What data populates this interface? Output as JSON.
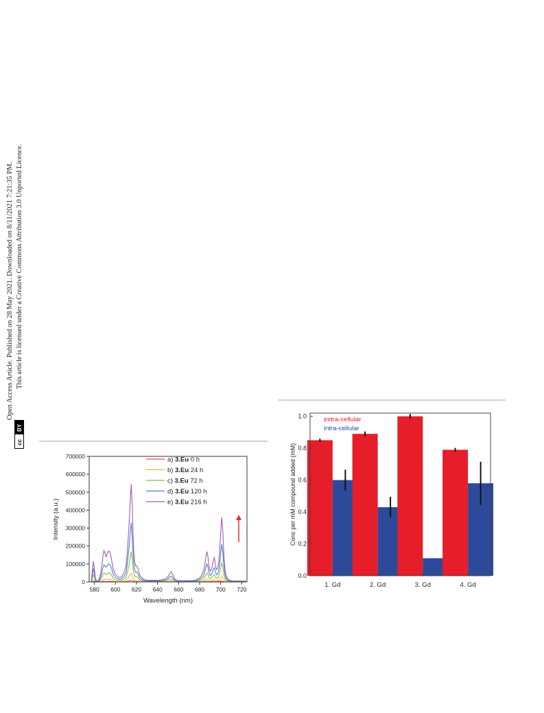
{
  "side_note": {
    "line1": "Open Access Article. Published on 28 May 2021. Downloaded on 8/11/2021 7:21:35 PM.",
    "line2": "This article is licensed under a Creative Commons Attribution 3.0 Unported Licence.",
    "cc_badge": "cc",
    "by_badge": "BY"
  },
  "chart_data": [
    {
      "type": "line",
      "xlabel": "Wavelength (nm)",
      "ylabel": "Intensity (a.u.)",
      "xlim": [
        575,
        725
      ],
      "ylim": [
        0,
        700000
      ],
      "x_ticks": [
        580,
        600,
        620,
        640,
        660,
        680,
        700,
        720
      ],
      "y_ticks": [
        0,
        100000,
        200000,
        300000,
        400000,
        500000,
        600000,
        700000
      ],
      "legend_position": "top-right",
      "x": [
        577,
        578,
        579,
        580,
        581,
        582,
        583,
        584,
        585,
        586,
        587,
        588,
        589,
        590,
        591,
        592,
        593,
        594,
        595,
        596,
        597,
        598,
        600,
        602,
        604,
        606,
        608,
        610,
        611,
        612,
        613,
        614,
        615,
        616,
        617,
        618,
        619,
        620,
        621,
        622,
        623,
        624,
        625,
        626,
        627,
        628,
        630,
        632,
        634,
        636,
        638,
        640,
        642,
        644,
        646,
        648,
        650,
        651,
        652,
        653,
        654,
        655,
        656,
        657,
        658,
        660,
        662,
        664,
        666,
        668,
        670,
        672,
        674,
        676,
        678,
        680,
        681,
        682,
        683,
        684,
        685,
        686,
        687,
        688,
        689,
        690,
        691,
        692,
        693,
        694,
        695,
        696,
        697,
        698,
        699,
        700,
        701,
        702,
        703,
        704,
        705,
        706,
        708,
        710,
        712,
        714,
        716,
        718,
        720,
        722,
        724
      ],
      "series": [
        {
          "name": "a) 3.Eu 0 h",
          "color": "#e84a4a",
          "values": [
            0,
            1000,
            3000,
            2000,
            0,
            0,
            0,
            0,
            500,
            1000,
            1500,
            2500,
            3000,
            2000,
            1500,
            2000,
            3000,
            3000,
            2500,
            2000,
            1500,
            1000,
            800,
            600,
            500,
            600,
            800,
            1500,
            2500,
            4000,
            6000,
            8000,
            9000,
            7000,
            4000,
            2500,
            2000,
            2000,
            2000,
            1500,
            1000,
            800,
            600,
            500,
            400,
            300,
            200,
            200,
            200,
            200,
            200,
            200,
            200,
            200,
            200,
            300,
            500,
            700,
            1000,
            1200,
            1000,
            700,
            500,
            300,
            200,
            100,
            100,
            100,
            100,
            100,
            100,
            100,
            100,
            200,
            300,
            500,
            700,
            800,
            1000,
            1500,
            2500,
            3000,
            2500,
            1500,
            1200,
            1500,
            2000,
            2500,
            3000,
            2000,
            1500,
            1500,
            2500,
            3500,
            5000,
            6000,
            5000,
            3000,
            1500,
            800,
            500,
            300,
            100,
            100,
            100,
            100,
            100,
            100,
            100,
            100,
            100
          ]
        },
        {
          "name": "b) 3.Eu 24 h",
          "color": "#f0b43c",
          "values": [
            0,
            6000,
            12000,
            8000,
            2000,
            500,
            500,
            1000,
            2000,
            4000,
            6000,
            10000,
            15000,
            14000,
            12000,
            14000,
            16000,
            16000,
            14000,
            12000,
            9000,
            6000,
            4000,
            3000,
            2500,
            3000,
            5000,
            8000,
            14000,
            22000,
            32000,
            42000,
            48000,
            38000,
            20000,
            12000,
            9000,
            9000,
            8000,
            6000,
            4000,
            3000,
            2500,
            2000,
            1500,
            1200,
            1000,
            900,
            900,
            1000,
            1000,
            1000,
            1000,
            1200,
            1500,
            2000,
            3000,
            4000,
            5000,
            5500,
            4500,
            3000,
            2000,
            1500,
            1000,
            700,
            700,
            700,
            700,
            700,
            800,
            800,
            900,
            1000,
            1500,
            2500,
            3000,
            4000,
            5000,
            7000,
            10000,
            14000,
            16000,
            13000,
            8000,
            6000,
            7000,
            9000,
            12000,
            13000,
            9000,
            7000,
            7000,
            10000,
            16000,
            24000,
            30000,
            25000,
            14000,
            7000,
            4000,
            2500,
            1200,
            700,
            500,
            500,
            500,
            500,
            500,
            500,
            500
          ]
        },
        {
          "name": "c) 3.Eu 72 h",
          "color": "#7fbf3f",
          "values": [
            0,
            20000,
            40000,
            25000,
            6000,
            1500,
            1500,
            3000,
            7000,
            15000,
            25000,
            40000,
            50000,
            46000,
            40000,
            45000,
            50000,
            52000,
            46000,
            40000,
            30000,
            20000,
            13000,
            9000,
            7000,
            9000,
            15000,
            25000,
            45000,
            70000,
            100000,
            135000,
            170000,
            125000,
            65000,
            38000,
            28000,
            28000,
            25000,
            18000,
            12000,
            9000,
            7000,
            5500,
            4500,
            3500,
            3000,
            2600,
            2600,
            2800,
            2800,
            2800,
            3000,
            3500,
            4500,
            6000,
            9000,
            12000,
            15000,
            16000,
            13000,
            9000,
            6000,
            4000,
            3000,
            2000,
            2000,
            2000,
            2000,
            2000,
            2200,
            2200,
            2500,
            3000,
            4500,
            7000,
            9000,
            12000,
            15000,
            20000,
            30000,
            42000,
            50000,
            40000,
            25000,
            18000,
            20000,
            26000,
            36000,
            40000,
            28000,
            20000,
            22000,
            30000,
            50000,
            80000,
            105000,
            85000,
            45000,
            22000,
            12000,
            7000,
            3500,
            2000,
            1500,
            1500,
            1500,
            1500,
            1500,
            1500,
            1500
          ]
        },
        {
          "name": "d) 3.Eu 120 h",
          "color": "#4a80d0",
          "values": [
            0,
            38000,
            75000,
            45000,
            10000,
            3000,
            3000,
            6000,
            14000,
            30000,
            50000,
            80000,
            95000,
            90000,
            82000,
            90000,
            98000,
            100000,
            92000,
            80000,
            60000,
            40000,
            26000,
            18000,
            14000,
            18000,
            30000,
            50000,
            90000,
            140000,
            200000,
            270000,
            330000,
            245000,
            125000,
            75000,
            55000,
            55000,
            50000,
            36000,
            24000,
            18000,
            14000,
            11000,
            9000,
            7000,
            6000,
            5200,
            5200,
            5500,
            5500,
            5500,
            6000,
            7000,
            9000,
            12000,
            18000,
            24000,
            30000,
            32000,
            26000,
            18000,
            12000,
            8000,
            6000,
            4000,
            4000,
            4000,
            4000,
            4000,
            4400,
            4400,
            5000,
            6000,
            9000,
            14000,
            18000,
            24000,
            30000,
            40000,
            60000,
            84000,
            100000,
            80000,
            50000,
            36000,
            40000,
            52000,
            72000,
            80000,
            56000,
            40000,
            44000,
            60000,
            100000,
            160000,
            210000,
            170000,
            90000,
            44000,
            24000,
            14000,
            7000,
            4000,
            3000,
            3000,
            3000,
            3000,
            3000,
            3000,
            3000
          ]
        },
        {
          "name": "e) 3.Eu 216 h",
          "color": "#a05ab4",
          "values": [
            0,
            60000,
            115000,
            70000,
            16000,
            5000,
            5000,
            10000,
            24000,
            50000,
            90000,
            140000,
            175000,
            160000,
            140000,
            155000,
            168000,
            172000,
            160000,
            135000,
            100000,
            68000,
            42000,
            30000,
            24000,
            30000,
            50000,
            85000,
            150000,
            230000,
            330000,
            450000,
            545000,
            410000,
            210000,
            125000,
            90000,
            90000,
            82000,
            60000,
            40000,
            30000,
            24000,
            18000,
            15000,
            12000,
            10000,
            9000,
            9000,
            9500,
            9500,
            9500,
            10000,
            12000,
            15000,
            20000,
            30000,
            40000,
            52000,
            58000,
            46000,
            32000,
            20000,
            13000,
            10000,
            7000,
            7000,
            7000,
            7000,
            7000,
            7500,
            7500,
            8500,
            10000,
            15000,
            23000,
            30000,
            40000,
            50000,
            68000,
            100000,
            142000,
            170000,
            135000,
            85000,
            60000,
            68000,
            88000,
            120000,
            135000,
            95000,
            68000,
            75000,
            100000,
            170000,
            270000,
            360000,
            290000,
            155000,
            75000,
            40000,
            24000,
            12000,
            7000,
            5000,
            5000,
            5000,
            5000,
            5000,
            5000,
            5000
          ]
        }
      ],
      "legend_labels": [
        {
          "prefix": "a) ",
          "bold": "3.Eu",
          "suffix": " 0 h"
        },
        {
          "prefix": "b) ",
          "bold": "3.Eu",
          "suffix": " 24 h"
        },
        {
          "prefix": "c) ",
          "bold": "3.Eu",
          "suffix": " 72 h"
        },
        {
          "prefix": "d) ",
          "bold": "3.Eu",
          "suffix": " 120 h"
        },
        {
          "prefix": "e) ",
          "bold": "3.Eu",
          "suffix": " 216 h"
        }
      ],
      "annotation_arrow": {
        "direction": "up",
        "color": "#e03030"
      }
    },
    {
      "type": "bar",
      "categories": [
        "1. Gd",
        "2. Gd",
        "3. Gd",
        "4. Gd"
      ],
      "ylabel": "Conc per mM compound added (mM)",
      "xlabel": "",
      "ylim": [
        0,
        1.02
      ],
      "y_ticks": [
        "0.0",
        "0.2",
        "0.4",
        "0.6",
        "0.8",
        "1.0"
      ],
      "legend_position": "top-left",
      "series": [
        {
          "name": "extra-cellular",
          "color": "#e51e2a",
          "values": [
            0.85,
            0.89,
            1.0,
            0.79
          ],
          "errors": [
            0.01,
            0.015,
            0.015,
            0.012
          ]
        },
        {
          "name": "intra-cellular",
          "color": "#2d4a9a",
          "values": [
            0.6,
            0.43,
            0.11,
            0.58
          ],
          "errors": [
            0.065,
            0.065,
            0.0,
            0.135
          ]
        }
      ]
    }
  ]
}
